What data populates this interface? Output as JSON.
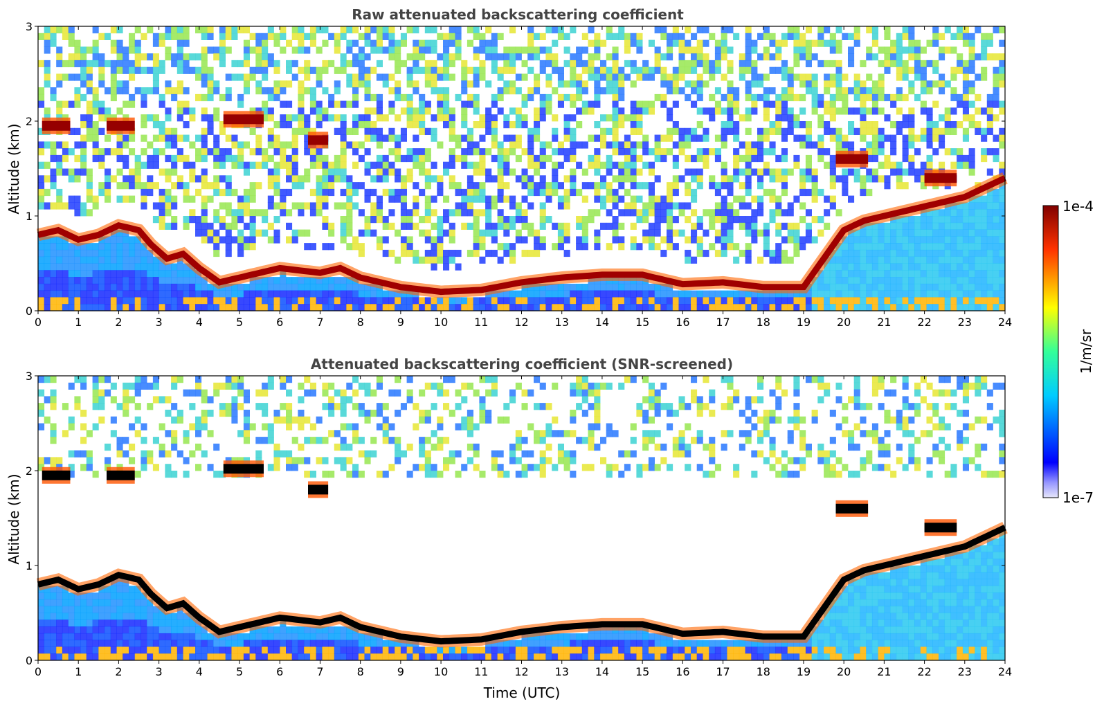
{
  "chart_data": [
    {
      "type": "heatmap",
      "title": "Raw attenuated backscattering coefficient",
      "xlabel": "",
      "ylabel": "Altitude (km)",
      "xlim": [
        0,
        24
      ],
      "ylim": [
        0,
        3
      ],
      "xticks": [
        "0",
        "1",
        "2",
        "3",
        "4",
        "5",
        "6",
        "7",
        "8",
        "9",
        "10",
        "11",
        "12",
        "13",
        "14",
        "15",
        "16",
        "17",
        "18",
        "19",
        "20",
        "21",
        "22",
        "23",
        "24"
      ],
      "yticks": [
        "0",
        "1",
        "2",
        "3"
      ],
      "screened": false,
      "boundary_layer_km": [
        [
          0,
          0.8
        ],
        [
          0.5,
          0.85
        ],
        [
          1,
          0.75
        ],
        [
          1.5,
          0.8
        ],
        [
          2,
          0.9
        ],
        [
          2.5,
          0.85
        ],
        [
          2.8,
          0.7
        ],
        [
          3.2,
          0.55
        ],
        [
          3.6,
          0.6
        ],
        [
          4,
          0.45
        ],
        [
          4.5,
          0.3
        ],
        [
          5,
          0.35
        ],
        [
          5.5,
          0.4
        ],
        [
          6,
          0.45
        ],
        [
          7,
          0.4
        ],
        [
          7.5,
          0.45
        ],
        [
          8,
          0.35
        ],
        [
          8.5,
          0.3
        ],
        [
          9,
          0.25
        ],
        [
          10,
          0.2
        ],
        [
          11,
          0.22
        ],
        [
          12,
          0.3
        ],
        [
          13,
          0.35
        ],
        [
          14,
          0.38
        ],
        [
          15,
          0.38
        ],
        [
          16,
          0.28
        ],
        [
          17,
          0.3
        ],
        [
          18,
          0.25
        ],
        [
          19,
          0.25
        ],
        [
          19.5,
          0.55
        ],
        [
          20,
          0.85
        ],
        [
          20.5,
          0.95
        ],
        [
          21,
          1.0
        ],
        [
          22,
          1.1
        ],
        [
          23,
          1.2
        ],
        [
          24,
          1.4
        ]
      ],
      "cloud_layers": [
        {
          "t0": 0.1,
          "t1": 0.8,
          "alt_km": 1.95
        },
        {
          "t0": 1.7,
          "t1": 2.4,
          "alt_km": 1.95
        },
        {
          "t0": 4.6,
          "t1": 5.6,
          "alt_km": 2.02
        },
        {
          "t0": 6.7,
          "t1": 7.2,
          "alt_km": 1.8
        },
        {
          "t0": 19.8,
          "t1": 20.6,
          "alt_km": 1.6
        },
        {
          "t0": 22.0,
          "t1": 22.8,
          "alt_km": 1.4
        }
      ]
    },
    {
      "type": "heatmap",
      "title": "Attenuated backscattering coefficient (SNR-screened)",
      "xlabel": "Time (UTC)",
      "ylabel": "Altitude (km)",
      "xlim": [
        0,
        24
      ],
      "ylim": [
        0,
        3
      ],
      "xticks": [
        "0",
        "1",
        "2",
        "3",
        "4",
        "5",
        "6",
        "7",
        "8",
        "9",
        "10",
        "11",
        "12",
        "13",
        "14",
        "15",
        "16",
        "17",
        "18",
        "19",
        "20",
        "21",
        "22",
        "23",
        "24"
      ],
      "yticks": [
        "0",
        "1",
        "2",
        "3"
      ],
      "screened": true
    }
  ],
  "colorbar": {
    "label": "1/m/sr",
    "max_label": "1e-4",
    "min_label": "1e-7",
    "colormap": "jet",
    "scale": "log",
    "range": [
      1e-07,
      0.0001
    ]
  }
}
